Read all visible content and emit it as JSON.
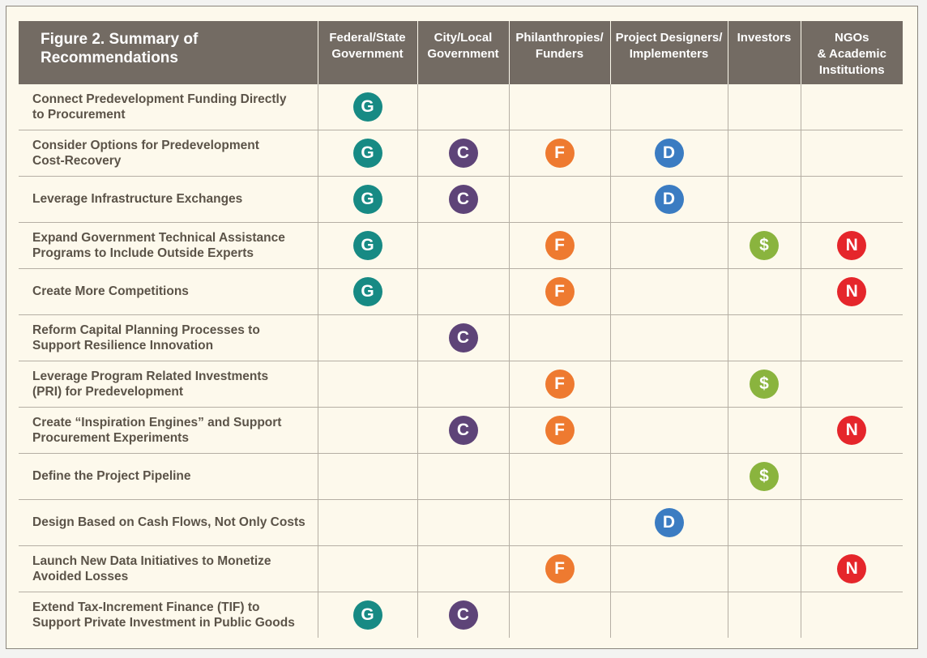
{
  "figure": {
    "title": "Figure 2. Summary of\nRecommendations"
  },
  "columns": [
    {
      "key": "G",
      "label": "Federal/State\nGovernment",
      "badge": "G",
      "color": "#178a84"
    },
    {
      "key": "C",
      "label": "City/Local\nGovernment",
      "badge": "C",
      "color": "#5e4478"
    },
    {
      "key": "F",
      "label": "Philanthropies/\nFunders",
      "badge": "F",
      "color": "#ee7a30"
    },
    {
      "key": "D",
      "label": "Project Designers/\nImplementers",
      "badge": "D",
      "color": "#3b7cc2"
    },
    {
      "key": "$",
      "label": "Investors",
      "badge": "$",
      "color": "#8ab43e"
    },
    {
      "key": "N",
      "label": "NGOs\n& Academic\nInstitutions",
      "badge": "N",
      "color": "#e5262b"
    }
  ],
  "rows": [
    {
      "label": "Connect Predevelopment Funding Directly\nto Procurement",
      "marks": [
        "G"
      ]
    },
    {
      "label": "Consider Options for Predevelopment\nCost-Recovery",
      "marks": [
        "G",
        "C",
        "F",
        "D"
      ]
    },
    {
      "label": "Leverage Infrastructure Exchanges",
      "marks": [
        "G",
        "C",
        "D"
      ]
    },
    {
      "label": "Expand Government Technical Assistance\nPrograms to Include Outside Experts",
      "marks": [
        "G",
        "F",
        "$",
        "N"
      ]
    },
    {
      "label": "Create More Competitions",
      "marks": [
        "G",
        "F",
        "N"
      ]
    },
    {
      "label": "Reform Capital Planning Processes to\nSupport Resilience Innovation",
      "marks": [
        "C"
      ]
    },
    {
      "label": "Leverage Program Related Investments\n(PRI) for Predevelopment",
      "marks": [
        "F",
        "$"
      ]
    },
    {
      "label": "Create “Inspiration Engines” and Support\nProcurement Experiments",
      "marks": [
        "C",
        "F",
        "N"
      ]
    },
    {
      "label": "Define the Project Pipeline",
      "marks": [
        "$"
      ]
    },
    {
      "label": "Design Based on Cash Flows, Not Only Costs",
      "marks": [
        "D"
      ]
    },
    {
      "label": "Launch New Data Initiatives to Monetize\nAvoided Losses",
      "marks": [
        "F",
        "N"
      ]
    },
    {
      "label": "Extend Tax-Increment Finance (TIF) to\nSupport Private Investment in Public Goods",
      "marks": [
        "G",
        "C"
      ]
    }
  ]
}
